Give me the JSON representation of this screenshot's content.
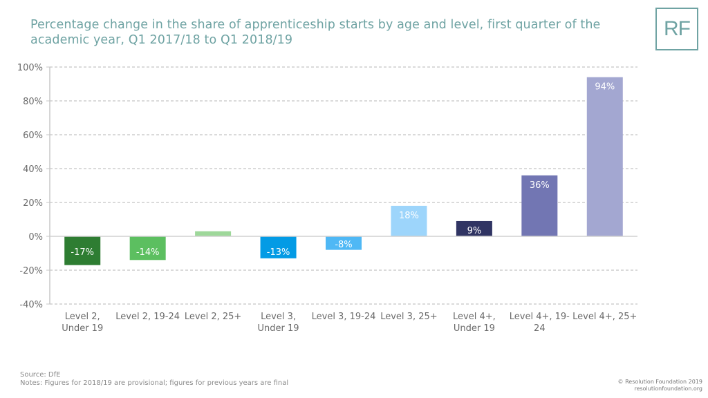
{
  "header": {
    "title": "Percentage change in the share of apprenticeship starts by age and level, first quarter of the academic year, Q1 2017/18 to Q1 2018/19",
    "logo_text": "RF"
  },
  "footer": {
    "source": "Source: DfE",
    "notes": "Notes: Figures for 2018/19 are provisional; figures for previous years are final",
    "copyright": "© Resolution Foundation 2019",
    "website": "resolutionfoundation.org"
  },
  "chart_data": {
    "type": "bar",
    "title": "Percentage change in the share of apprenticeship starts by age and level, first quarter of the academic year, Q1 2017/18 to Q1 2018/19",
    "xlabel": "",
    "ylabel": "",
    "ylim": [
      -40,
      100
    ],
    "yticks": [
      -40,
      -20,
      0,
      20,
      40,
      60,
      80,
      100
    ],
    "ytick_labels": [
      "-40%",
      "-20%",
      "0%",
      "20%",
      "40%",
      "60%",
      "80%",
      "100%"
    ],
    "grid": true,
    "legend": "none",
    "categories": [
      [
        "Level 2,",
        "Under 19"
      ],
      [
        "Level 2, 19-24"
      ],
      [
        "Level 2, 25+"
      ],
      [
        "Level 3,",
        "Under 19"
      ],
      [
        "Level 3, 19-24"
      ],
      [
        "Level 3, 25+"
      ],
      [
        "Level 4+,",
        "Under 19"
      ],
      [
        "Level 4+, 19-",
        "24"
      ],
      [
        "Level 4+, 25+"
      ]
    ],
    "values": [
      -17,
      -14,
      3,
      -13,
      -8,
      18,
      9,
      36,
      94
    ],
    "data_labels": [
      "-17%",
      "-14%",
      "",
      "-13%",
      "-8%",
      "18%",
      "9%",
      "36%",
      "94%"
    ],
    "colors": [
      "#2e7d32",
      "#5cbf60",
      "#9ed89a",
      "#039be5",
      "#4fb8f5",
      "#9dd5fb",
      "#303463",
      "#7276b3",
      "#a3a7d1"
    ]
  }
}
